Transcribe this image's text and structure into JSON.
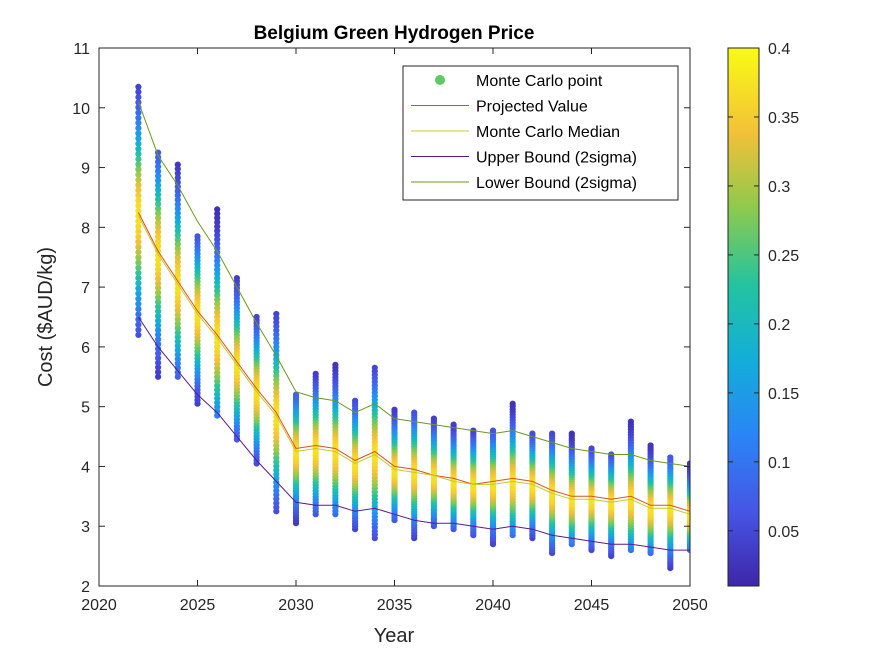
{
  "chart_data": {
    "type": "scatter",
    "title": "Belgium Green Hydrogen Price",
    "xlabel": "Year",
    "ylabel": "Cost ($AUD/kg)",
    "xlim": [
      2020,
      2050
    ],
    "ylim": [
      2,
      11
    ],
    "xticks": [
      "2020",
      "2025",
      "2030",
      "2035",
      "2040",
      "2045",
      "2050"
    ],
    "yticks": [
      "2",
      "3",
      "4",
      "5",
      "6",
      "7",
      "8",
      "9",
      "10",
      "11"
    ],
    "grid": false,
    "box": true,
    "legend_position": "top-right",
    "legend": [
      {
        "label": "Monte Carlo point",
        "marker": "dot",
        "color": "#5ec962"
      },
      {
        "label": "Projected Value",
        "marker": "line",
        "color": "#d95319"
      },
      {
        "label": "Monte Carlo Median",
        "marker": "line",
        "color": "#c8c832"
      },
      {
        "label": "Upper Bound (2sigma)",
        "marker": "line",
        "color": "#5a1a8c"
      },
      {
        "label": "Lower Bound (2sigma)",
        "marker": "line",
        "color": "#6b9a1e"
      }
    ],
    "colorbar": {
      "range": [
        0.01,
        0.4
      ],
      "ticks": [
        "0.05",
        "0.1",
        "0.15",
        "0.2",
        "0.25",
        "0.3",
        "0.35",
        "0.4"
      ],
      "colormap": "parula"
    },
    "x": [
      2022,
      2023,
      2024,
      2025,
      2026,
      2027,
      2028,
      2029,
      2030,
      2031,
      2032,
      2033,
      2034,
      2035,
      2036,
      2037,
      2038,
      2039,
      2040,
      2041,
      2042,
      2043,
      2044,
      2045,
      2046,
      2047,
      2048,
      2049,
      2050
    ],
    "series": [
      {
        "name": "Projected Value",
        "color": "#d95319",
        "values": [
          8.25,
          7.6,
          7.1,
          6.6,
          6.2,
          5.75,
          5.3,
          4.9,
          4.3,
          4.35,
          4.3,
          4.1,
          4.25,
          4.0,
          3.95,
          3.85,
          3.8,
          3.7,
          3.75,
          3.8,
          3.75,
          3.6,
          3.5,
          3.5,
          3.45,
          3.5,
          3.35,
          3.35,
          3.25
        ]
      },
      {
        "name": "Monte Carlo Median",
        "color": "#c8c832",
        "values": [
          8.2,
          7.55,
          7.05,
          6.55,
          6.15,
          5.7,
          5.25,
          4.85,
          4.25,
          4.3,
          4.25,
          4.05,
          4.2,
          3.95,
          3.9,
          3.85,
          3.75,
          3.7,
          3.7,
          3.75,
          3.7,
          3.55,
          3.45,
          3.45,
          3.4,
          3.45,
          3.3,
          3.3,
          3.2
        ]
      },
      {
        "name": "Upper Bound (2sigma)",
        "color": "#5a1a8c",
        "values": [
          6.5,
          6.0,
          5.6,
          5.2,
          4.9,
          4.5,
          4.1,
          3.75,
          3.4,
          3.35,
          3.35,
          3.25,
          3.3,
          3.2,
          3.1,
          3.05,
          3.05,
          3.0,
          2.95,
          3.0,
          2.95,
          2.85,
          2.8,
          2.75,
          2.7,
          2.7,
          2.65,
          2.6,
          2.6
        ]
      },
      {
        "name": "Lower Bound (2sigma)",
        "color": "#6b9a1e",
        "values": [
          10.1,
          9.2,
          8.7,
          8.1,
          7.6,
          7.0,
          6.4,
          5.85,
          5.25,
          5.15,
          5.1,
          4.9,
          5.05,
          4.8,
          4.75,
          4.7,
          4.65,
          4.6,
          4.55,
          4.6,
          4.5,
          4.4,
          4.3,
          4.25,
          4.2,
          4.2,
          4.1,
          4.05,
          4.0
        ]
      }
    ],
    "monte_carlo": {
      "spread": [
        [
          6.2,
          10.35
        ],
        [
          5.5,
          9.25
        ],
        [
          5.5,
          9.05
        ],
        [
          5.05,
          7.85
        ],
        [
          4.85,
          8.3
        ],
        [
          4.45,
          7.15
        ],
        [
          4.05,
          6.5
        ],
        [
          3.25,
          6.55
        ],
        [
          3.05,
          5.2
        ],
        [
          3.2,
          5.55
        ],
        [
          3.2,
          5.7
        ],
        [
          2.95,
          5.1
        ],
        [
          2.8,
          5.65
        ],
        [
          3.1,
          4.95
        ],
        [
          2.8,
          4.9
        ],
        [
          3.0,
          4.8
        ],
        [
          2.95,
          4.7
        ],
        [
          2.85,
          4.6
        ],
        [
          2.7,
          4.6
        ],
        [
          2.85,
          5.05
        ],
        [
          2.8,
          4.55
        ],
        [
          2.55,
          4.55
        ],
        [
          2.7,
          4.55
        ],
        [
          2.6,
          4.3
        ],
        [
          2.5,
          4.2
        ],
        [
          2.6,
          4.75
        ],
        [
          2.55,
          4.35
        ],
        [
          2.3,
          4.15
        ],
        [
          2.6,
          4.05
        ]
      ]
    }
  }
}
